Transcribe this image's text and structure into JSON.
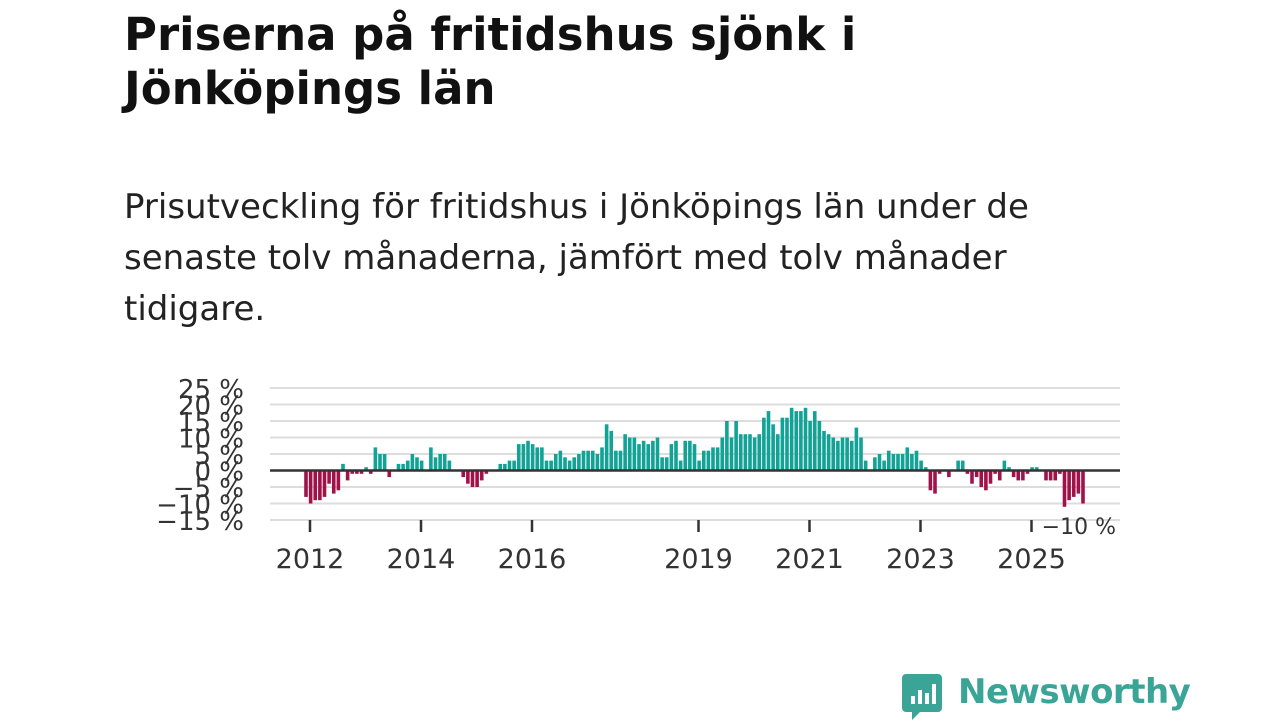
{
  "title": "Priserna på fritidshus sjönk i Jönköpings län",
  "subtitle": "Prisutveckling för fritidshus i Jönköpings län under de senaste tolv månaderna, jämfört med tolv månader tidigare.",
  "brand": "Newsworthy",
  "colors": {
    "positive": "#12a296",
    "negative": "#a0134a",
    "zero_line": "#333333",
    "grid": "#dddddd",
    "brand": "#3aa597"
  },
  "chart_data": {
    "type": "bar",
    "title": "Priserna på fritidshus sjönk i Jönköpings län",
    "xlabel": "",
    "ylabel": "",
    "ylim": [
      -15,
      25
    ],
    "yticks": [
      25,
      20,
      15,
      10,
      5,
      0,
      -5,
      -10,
      -15
    ],
    "ytick_labels": [
      "25 %",
      "20 %",
      "15 %",
      "10 %",
      "5 %",
      "0 %",
      "−5 %",
      "−10 %",
      "−15 %"
    ],
    "x_start": "2012-01",
    "xticks": [
      2012,
      2014,
      2016,
      2019,
      2021,
      2023,
      2025
    ],
    "xtick_labels": [
      "2012",
      "2014",
      "2016",
      "2019",
      "2021",
      "2023",
      "2025"
    ],
    "annotation": "−10 %",
    "values": [
      -8,
      -10,
      -9,
      -9,
      -8,
      -4,
      -7,
      -6,
      2,
      -3,
      -1,
      -1,
      -1,
      1,
      -1,
      7,
      5,
      5,
      -2,
      0,
      2,
      2,
      3,
      5,
      4,
      3,
      0,
      7,
      4,
      5,
      5,
      3,
      0,
      0,
      -2,
      -4,
      -5,
      -5,
      -3,
      -1,
      0,
      0,
      2,
      2,
      3,
      3,
      8,
      8,
      9,
      8,
      7,
      7,
      3,
      3,
      5,
      6,
      4,
      3,
      4,
      5,
      6,
      6,
      6,
      5,
      7,
      14,
      12,
      6,
      6,
      11,
      10,
      10,
      8,
      9,
      8,
      9,
      10,
      4,
      4,
      8,
      9,
      3,
      9,
      9,
      8,
      3,
      6,
      6,
      7,
      7,
      10,
      15,
      10,
      15,
      11,
      11,
      11,
      10,
      11,
      16,
      18,
      14,
      11,
      16,
      16,
      19,
      18,
      18,
      19,
      15,
      18,
      15,
      12,
      11,
      10,
      9,
      10,
      10,
      9,
      13,
      10,
      3,
      0,
      4,
      5,
      3,
      6,
      5,
      5,
      5,
      7,
      5,
      6,
      3,
      1,
      -6,
      -7,
      -1,
      0,
      -2,
      0,
      3,
      3,
      -1,
      -4,
      -2,
      -5,
      -6,
      -4,
      -1,
      -3,
      3,
      1,
      -2,
      -3,
      -3,
      -1,
      1,
      1,
      0,
      -3,
      -3,
      -3,
      -1,
      -11,
      -9,
      -8,
      -7,
      -10
    ]
  }
}
